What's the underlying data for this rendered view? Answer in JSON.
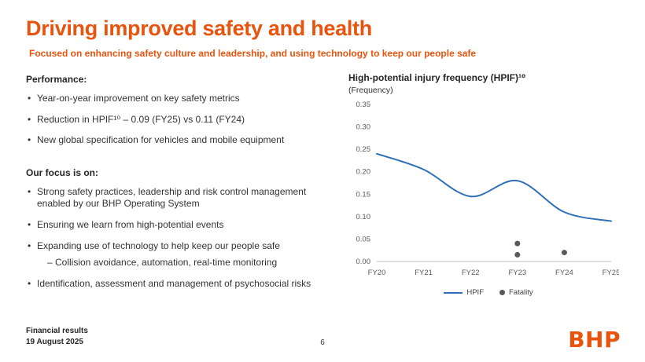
{
  "slide": {
    "title": "Driving improved safety and health",
    "subtitle": "Focused on enhancing safety culture and leadership, and using technology to keep our people safe"
  },
  "performance": {
    "heading": "Performance:",
    "items": [
      "Year-on-year improvement on key safety metrics",
      "Reduction in HPIF¹⁰ – 0.09 (FY25) vs 0.11 (FY24)",
      "New global specification for vehicles and mobile equipment"
    ]
  },
  "focus": {
    "heading": "Our focus is on:",
    "items": [
      "Strong safety practices, leadership and risk control management enabled by our BHP Operating System",
      "Ensuring we learn from high-potential events",
      "Expanding use of technology to help keep our people safe",
      "Identification, assessment and management of psychosocial risks"
    ],
    "sub_item": "–  Collision avoidance, automation, real-time monitoring"
  },
  "chart": {
    "title": "High-potential injury frequency (HPIF)¹⁰",
    "subtitle": "(Frequency)"
  },
  "chart_data": {
    "type": "line",
    "title": "High-potential injury frequency (HPIF)",
    "ylabel": "(Frequency)",
    "categories": [
      "FY20",
      "FY21",
      "FY22",
      "FY23",
      "FY24",
      "FY25"
    ],
    "series": [
      {
        "name": "HPIF",
        "type": "line",
        "color": "#2e6fb7",
        "values": [
          0.24,
          0.205,
          0.145,
          0.18,
          0.11,
          0.09
        ]
      },
      {
        "name": "Fatality",
        "type": "scatter",
        "color": "#595959",
        "points": [
          {
            "category": "FY23",
            "value": 0.04
          },
          {
            "category": "FY23",
            "value": 0.015
          },
          {
            "category": "FY24",
            "value": 0.02
          }
        ]
      }
    ],
    "ylim": [
      0,
      0.35
    ],
    "ytick_step": 0.05,
    "yticks": [
      "0.00",
      "0.05",
      "0.10",
      "0.15",
      "0.20",
      "0.25",
      "0.30",
      "0.35"
    ],
    "grid": false,
    "legend_position": "bottom",
    "legend": [
      "HPIF",
      "Fatality"
    ]
  },
  "footer": {
    "line1": "Financial results",
    "line2": "19 August 2025",
    "page_number": "6",
    "logo": "BHP"
  },
  "colors": {
    "accent": "#e8530e",
    "line": "#2e6fb7",
    "dot": "#595959"
  }
}
